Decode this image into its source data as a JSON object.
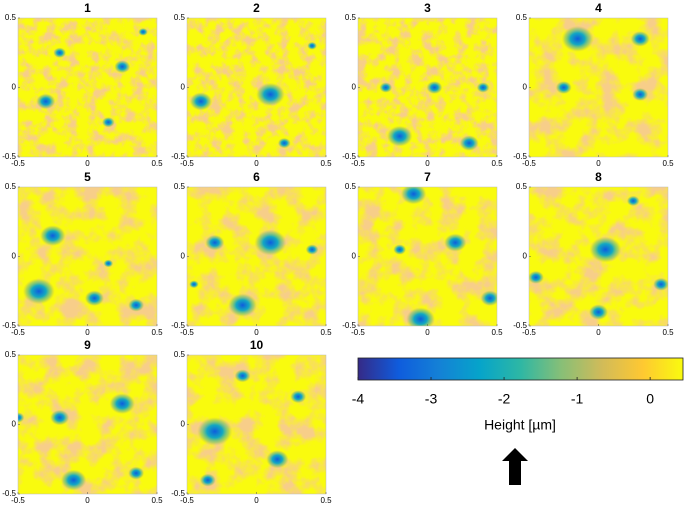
{
  "chart_data": [
    {
      "type": "heatmap",
      "title": "1",
      "xlim": [
        -0.5,
        0.5
      ],
      "ylim": [
        -0.5,
        0.5
      ],
      "xticks": [
        -0.5,
        0,
        0.5
      ],
      "yticks": [
        -0.5,
        0,
        0.5
      ]
    },
    {
      "type": "heatmap",
      "title": "2",
      "xlim": [
        -0.5,
        0.5
      ],
      "ylim": [
        -0.5,
        0.5
      ],
      "xticks": [
        -0.5,
        0,
        0.5
      ],
      "yticks": [
        -0.5,
        0,
        0.5
      ]
    },
    {
      "type": "heatmap",
      "title": "3",
      "xlim": [
        -0.5,
        0.5
      ],
      "ylim": [
        -0.5,
        0.5
      ],
      "xticks": [
        -0.5,
        0,
        0.5
      ],
      "yticks": [
        -0.5,
        0,
        0.5
      ]
    },
    {
      "type": "heatmap",
      "title": "4",
      "xlim": [
        -0.5,
        0.5
      ],
      "ylim": [
        -0.5,
        0.5
      ],
      "xticks": [
        -0.5,
        0,
        0.5
      ],
      "yticks": [
        -0.5,
        0,
        0.5
      ]
    },
    {
      "type": "heatmap",
      "title": "5",
      "xlim": [
        -0.5,
        0.5
      ],
      "ylim": [
        -0.5,
        0.5
      ],
      "xticks": [
        -0.5,
        0,
        0.5
      ],
      "yticks": [
        -0.5,
        0,
        0.5
      ]
    },
    {
      "type": "heatmap",
      "title": "6",
      "xlim": [
        -0.5,
        0.5
      ],
      "ylim": [
        -0.5,
        0.5
      ],
      "xticks": [
        -0.5,
        0,
        0.5
      ],
      "yticks": [
        -0.5,
        0,
        0.5
      ]
    },
    {
      "type": "heatmap",
      "title": "7",
      "xlim": [
        -0.5,
        0.5
      ],
      "ylim": [
        -0.5,
        0.5
      ],
      "xticks": [
        -0.5,
        0,
        0.5
      ],
      "yticks": [
        -0.5,
        0,
        0.5
      ]
    },
    {
      "type": "heatmap",
      "title": "8",
      "xlim": [
        -0.5,
        0.5
      ],
      "ylim": [
        -0.5,
        0.5
      ],
      "xticks": [
        -0.5,
        0,
        0.5
      ],
      "yticks": [
        -0.5,
        0,
        0.5
      ]
    },
    {
      "type": "heatmap",
      "title": "9",
      "xlim": [
        -0.5,
        0.5
      ],
      "ylim": [
        -0.5,
        0.5
      ],
      "xticks": [
        -0.5,
        0,
        0.5
      ],
      "yticks": [
        -0.5,
        0,
        0.5
      ]
    },
    {
      "type": "heatmap",
      "title": "10",
      "xlim": [
        -0.5,
        0.5
      ],
      "ylim": [
        -0.5,
        0.5
      ],
      "xticks": [
        -0.5,
        0,
        0.5
      ],
      "yticks": [
        -0.5,
        0,
        0.5
      ]
    },
    {
      "type": "colorbar",
      "label": "Height [µm]",
      "clim": [
        -4,
        0.45
      ],
      "ticks": [
        -4,
        -3,
        -2,
        -1,
        0
      ],
      "colors": [
        "#352a87",
        "#0f5cdd",
        "#1481d6",
        "#06a4ca",
        "#2eb7a4",
        "#87bf77",
        "#d1bb59",
        "#fec832",
        "#f9fb0e"
      ]
    }
  ]
}
